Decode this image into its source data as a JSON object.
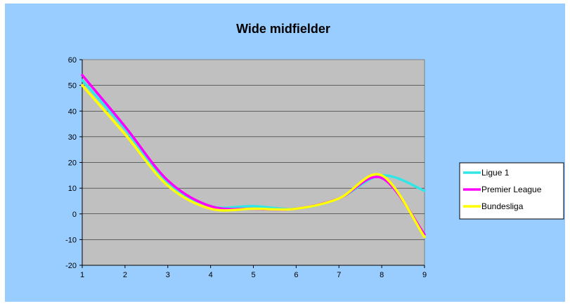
{
  "chart_data": {
    "type": "line",
    "title": "Wide midfielder",
    "xlabel": "",
    "ylabel": "",
    "x": [
      1,
      2,
      3,
      4,
      5,
      6,
      7,
      8,
      9
    ],
    "xlim": [
      1,
      9
    ],
    "ylim": [
      -20,
      60
    ],
    "yticks": [
      -20,
      -10,
      0,
      10,
      20,
      30,
      40,
      50,
      60
    ],
    "grid": true,
    "smooth": true,
    "legend_position": "right",
    "plot_background": "#c0c0c0",
    "chart_background": "#99ccff",
    "series": [
      {
        "name": "Ligue 1",
        "color": "#33e6e6",
        "values": [
          52,
          33,
          12,
          3,
          3,
          2,
          6,
          15,
          9
        ]
      },
      {
        "name": "Premier League",
        "color": "#ff00ff",
        "values": [
          54,
          34,
          13,
          3,
          2,
          2,
          6,
          14,
          -8
        ]
      },
      {
        "name": "Bundesliga",
        "color": "#ffff00",
        "values": [
          50,
          31,
          11,
          2,
          2,
          2,
          6,
          15,
          -9
        ]
      }
    ]
  }
}
